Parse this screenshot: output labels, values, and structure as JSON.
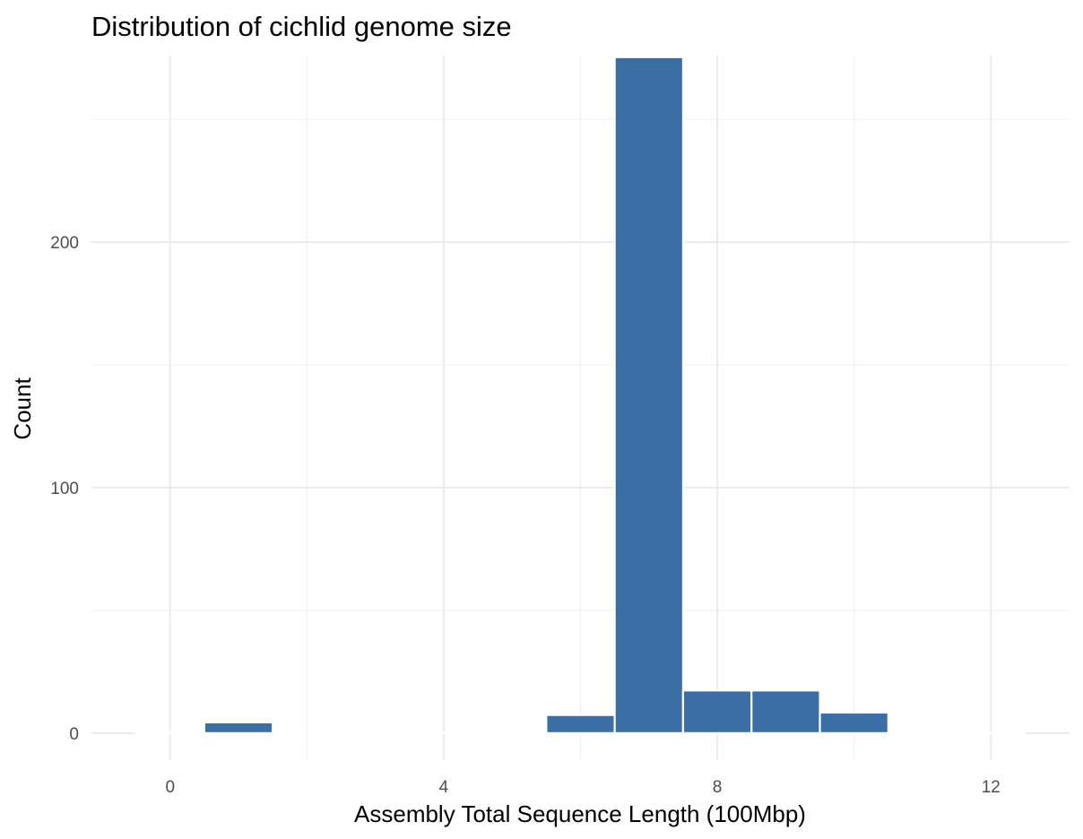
{
  "chart_data": {
    "type": "histogram",
    "title": "Distribution of cichlid genome size",
    "xlabel": "Assembly Total Sequence Length (100Mbp)",
    "ylabel": "Count",
    "xlim": [
      -1.15,
      13.15
    ],
    "ylim": [
      -11,
      276
    ],
    "x_ticks": [
      0,
      4,
      8,
      12
    ],
    "x_tick_labels": [
      "0",
      "4",
      "8",
      "12"
    ],
    "y_ticks": [
      0,
      100,
      200
    ],
    "y_tick_labels": [
      "0",
      "100",
      "200"
    ],
    "bin_width": 1,
    "bins": [
      {
        "x0": -0.5,
        "x1": 0.5,
        "count": 0
      },
      {
        "x0": 0.5,
        "x1": 1.5,
        "count": 4
      },
      {
        "x0": 1.5,
        "x1": 2.5,
        "count": 0
      },
      {
        "x0": 2.5,
        "x1": 3.5,
        "count": 0
      },
      {
        "x0": 3.5,
        "x1": 4.5,
        "count": 0
      },
      {
        "x0": 4.5,
        "x1": 5.5,
        "count": 0
      },
      {
        "x0": 5.5,
        "x1": 6.5,
        "count": 7
      },
      {
        "x0": 6.5,
        "x1": 7.5,
        "count": 275
      },
      {
        "x0": 7.5,
        "x1": 8.5,
        "count": 17
      },
      {
        "x0": 8.5,
        "x1": 9.5,
        "count": 17
      },
      {
        "x0": 9.5,
        "x1": 10.5,
        "count": 8
      },
      {
        "x0": 10.5,
        "x1": 11.5,
        "count": 0
      },
      {
        "x0": 11.5,
        "x1": 12.5,
        "count": 0
      }
    ],
    "bar_color": "#3a6ea5",
    "bar_outline": "#ffffff",
    "grid": true,
    "legend": "none"
  }
}
